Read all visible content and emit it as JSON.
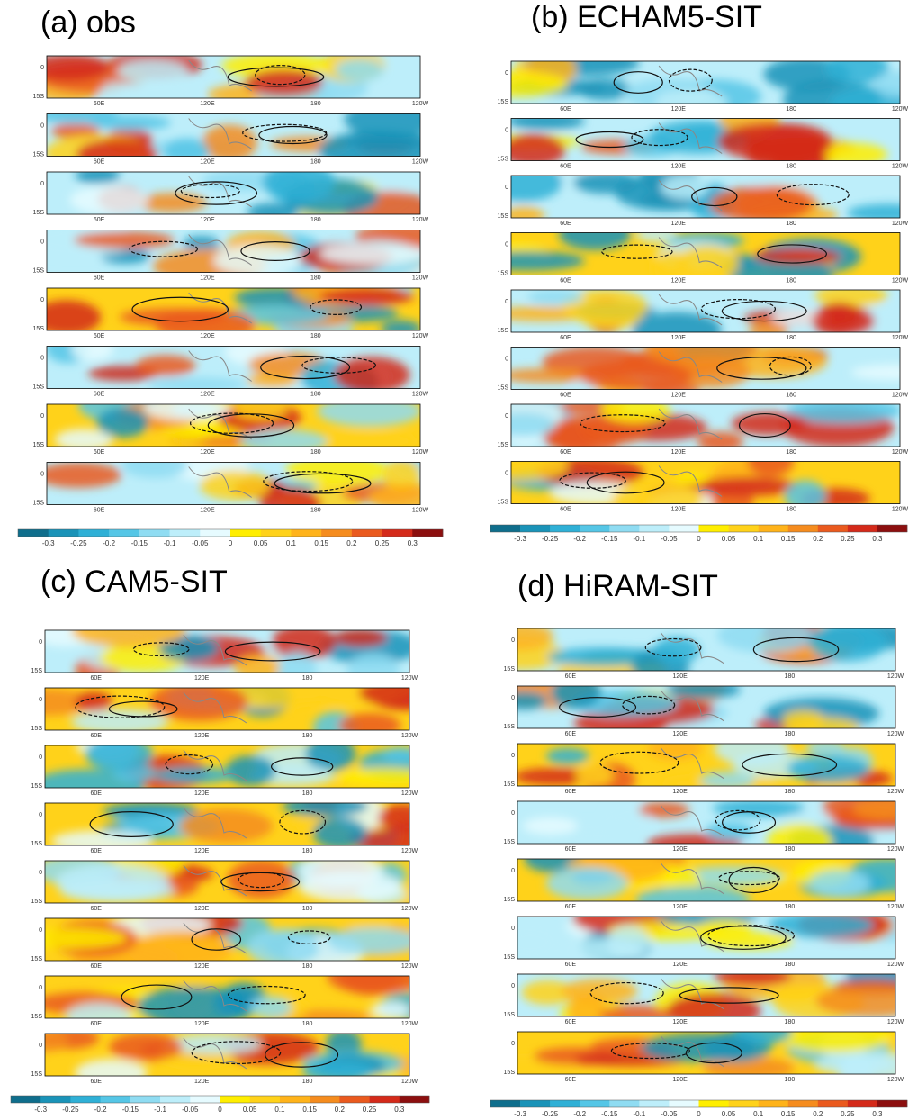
{
  "panels": [
    {
      "title": "(a) obs"
    },
    {
      "title": "(b) ECHAM5-SIT"
    },
    {
      "title": "(c) CAM5-SIT"
    },
    {
      "title": "(d) HiRAM-SIT"
    }
  ],
  "map_axis": {
    "lat_labels": [
      "0",
      "15S"
    ],
    "lon_labels": [
      "60E",
      "120E",
      "180",
      "120W"
    ]
  },
  "colorbar": {
    "ticks": [
      -0.3,
      -0.25,
      -0.2,
      -0.15,
      -0.1,
      -0.05,
      0,
      0.05,
      0.1,
      0.15,
      0.2,
      0.25,
      0.3
    ],
    "colors": [
      "#0f6e8c",
      "#1a93b8",
      "#2fb0d6",
      "#55c6e6",
      "#8fdcf2",
      "#bdeefa",
      "#e6fbff",
      "#ffee00",
      "#ffd21a",
      "#ffb31a",
      "#f58c1e",
      "#ea5a1e",
      "#d42a1a",
      "#8c0f0f"
    ]
  }
}
